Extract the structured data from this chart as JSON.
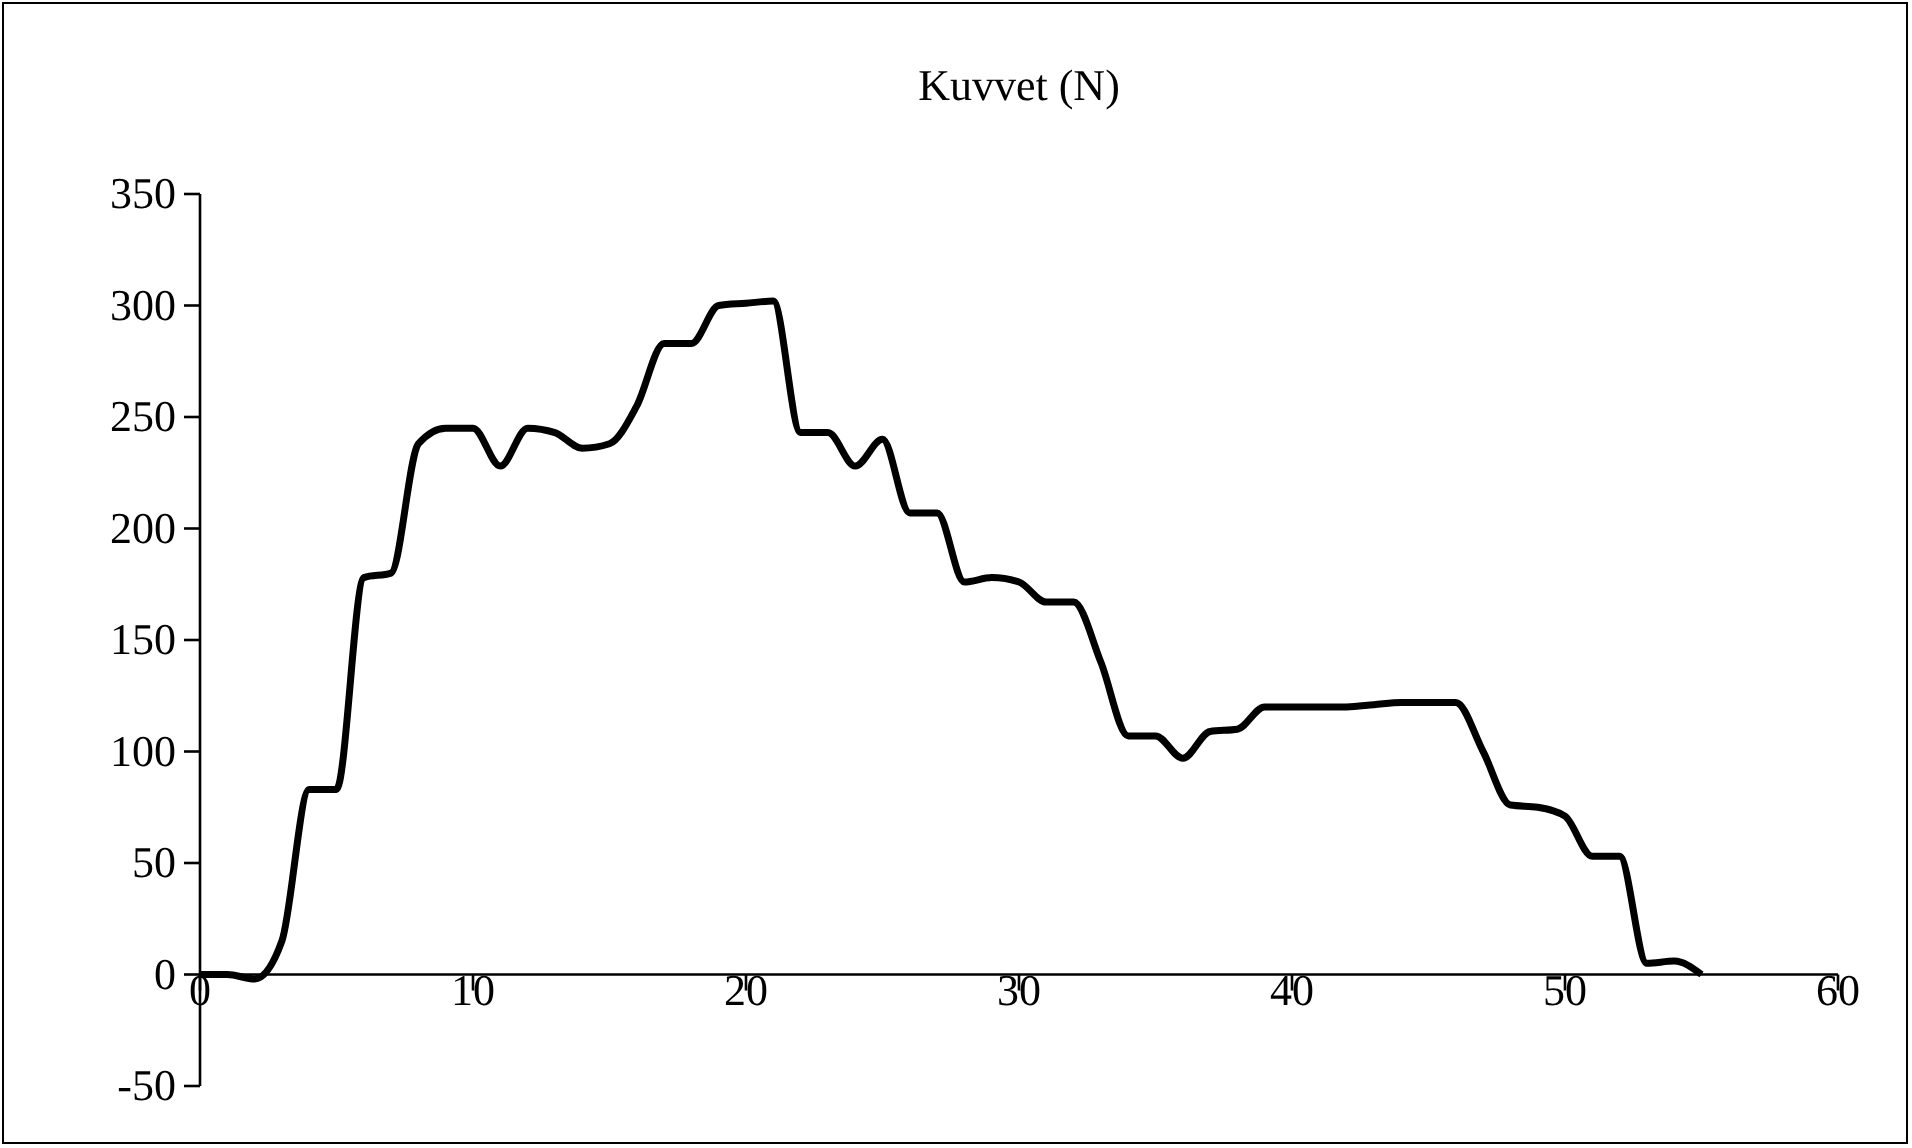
{
  "chart_data": {
    "type": "line",
    "title": "Kuvvet (N)",
    "x": [
      0,
      1,
      2,
      3,
      4,
      5,
      6,
      7,
      8,
      9,
      10,
      11,
      12,
      13,
      14,
      15,
      16,
      17,
      18,
      19,
      20,
      21,
      22,
      23,
      24,
      25,
      26,
      27,
      28,
      29,
      30,
      31,
      32,
      33,
      34,
      35,
      36,
      37,
      38,
      39,
      40,
      41,
      42,
      43,
      44,
      45,
      46,
      47,
      48,
      49,
      50,
      51,
      52,
      53,
      54,
      55
    ],
    "series": [
      {
        "color": "#000000",
        "values": [
          0,
          0,
          -2,
          15,
          83,
          83,
          178,
          180,
          238,
          245,
          245,
          228,
          245,
          243,
          236,
          238,
          255,
          283,
          283,
          300,
          301,
          302,
          243,
          243,
          228,
          240,
          207,
          207,
          176,
          178,
          176,
          167,
          167,
          140,
          107,
          107,
          97,
          109,
          110,
          120,
          120,
          120,
          120,
          121,
          122,
          122,
          122,
          100,
          76,
          75,
          71,
          53,
          53,
          5,
          6,
          0
        ]
      }
    ],
    "xlim": [
      0,
      60
    ],
    "xticks": [
      0,
      10,
      20,
      30,
      40,
      50,
      60
    ],
    "ylim": [
      -50,
      350
    ],
    "yticks": [
      -50,
      0,
      50,
      100,
      150,
      200,
      250,
      300,
      350
    ],
    "marker": "none",
    "line_style": "solid"
  }
}
